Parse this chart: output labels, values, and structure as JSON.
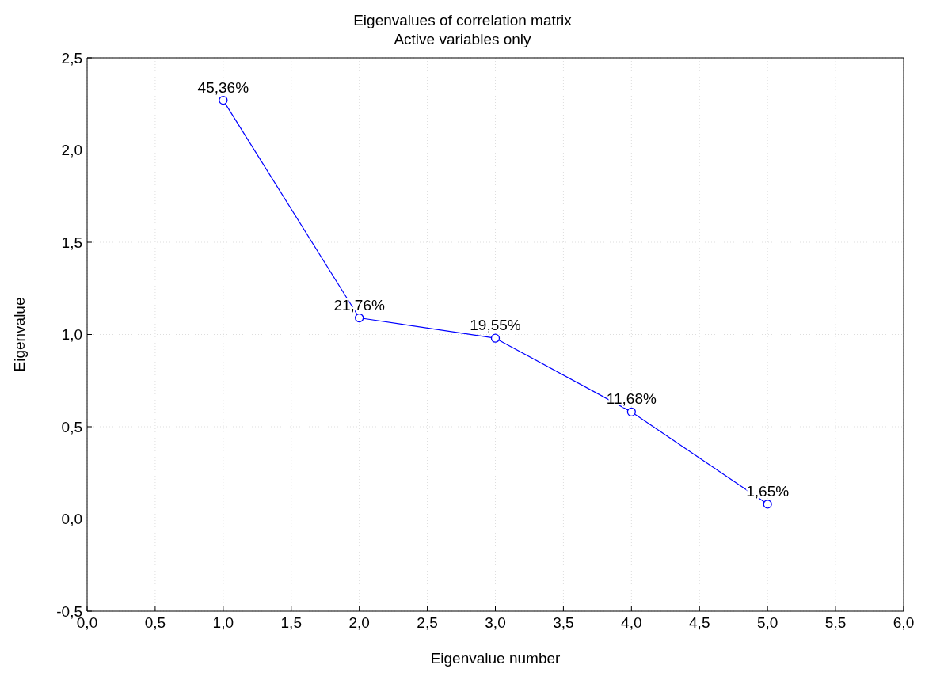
{
  "chart_data": {
    "type": "line",
    "title": "Eigenvalues of correlation matrix",
    "subtitle": "Active variables only",
    "xlabel": "Eigenvalue number",
    "ylabel": "Eigenvalue",
    "x": [
      1,
      2,
      3,
      4,
      5
    ],
    "series": [
      {
        "color": "#0000ff",
        "values": [
          2.27,
          1.09,
          0.98,
          0.58,
          0.08
        ]
      }
    ],
    "annotations": [
      {
        "text": "45,36%",
        "x": 1,
        "y": 2.27
      },
      {
        "text": "21,76%",
        "x": 2,
        "y": 1.09
      },
      {
        "text": "19,55%",
        "x": 3,
        "y": 0.98
      },
      {
        "text": "11,68%",
        "x": 4,
        "y": 0.58
      },
      {
        "text": "1,65%",
        "x": 5,
        "y": 0.08
      }
    ],
    "xlim": [
      0,
      6
    ],
    "xticks": [
      {
        "value": 0,
        "label": "0,0"
      },
      {
        "value": 0.5,
        "label": "0,5"
      },
      {
        "value": 1,
        "label": "1,0"
      },
      {
        "value": 1.5,
        "label": "1,5"
      },
      {
        "value": 2,
        "label": "2,0"
      },
      {
        "value": 2.5,
        "label": "2,5"
      },
      {
        "value": 3,
        "label": "3,0"
      },
      {
        "value": 3.5,
        "label": "3,5"
      },
      {
        "value": 4,
        "label": "4,0"
      },
      {
        "value": 4.5,
        "label": "4,5"
      },
      {
        "value": 5,
        "label": "5,0"
      },
      {
        "value": 5.5,
        "label": "5,5"
      },
      {
        "value": 6,
        "label": "6,0"
      }
    ],
    "ylim": [
      -0.5,
      2.5
    ],
    "yticks": [
      {
        "value": -0.5,
        "label": "-0,5"
      },
      {
        "value": 0,
        "label": "0,0"
      },
      {
        "value": 0.5,
        "label": "0,5"
      },
      {
        "value": 1,
        "label": "1,0"
      },
      {
        "value": 1.5,
        "label": "1,5"
      },
      {
        "value": 2,
        "label": "2,0"
      },
      {
        "value": 2.5,
        "label": "2,5"
      }
    ],
    "grid": true,
    "marker": "circle",
    "line_style": "solid"
  }
}
